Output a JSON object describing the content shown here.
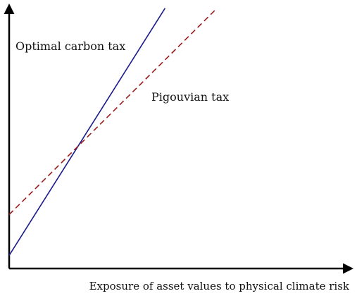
{
  "chart_data": {
    "type": "line",
    "title": "",
    "xlabel": "Exposure of asset values to physical climate risk",
    "ylabel": "",
    "xlim": [
      0,
      1
    ],
    "ylim": [
      0,
      1
    ],
    "grid": false,
    "legend": "none",
    "series": [
      {
        "name": "Optimal carbon tax",
        "color": "#1a1a8c",
        "dash": "solid",
        "x": [
          0,
          0.45
        ],
        "y": [
          0.05,
          0.99
        ]
      },
      {
        "name": "Pigouvian tax",
        "color": "#9b1c1c",
        "dash": "dashed",
        "x": [
          0,
          0.6
        ],
        "y": [
          0.205,
          0.99
        ]
      }
    ]
  }
}
